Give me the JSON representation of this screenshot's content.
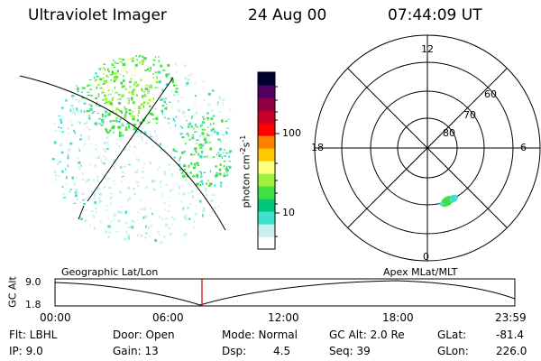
{
  "header": {
    "instrument": "Ultraviolet Imager",
    "date": "24 Aug 00",
    "time": "07:44:09 UT"
  },
  "colorbar": {
    "unit_label": "photon cm",
    "unit_exp1": "-2",
    "unit_s": "s",
    "unit_exp2": "-1",
    "tick_100": "100",
    "tick_10": "10",
    "colors": [
      "#ffffff",
      "#c8f0f0",
      "#40e0d0",
      "#00c878",
      "#40e040",
      "#a0f040",
      "#ffff80",
      "#ffc800",
      "#ff8000",
      "#ff0000",
      "#c80028",
      "#900040",
      "#500060",
      "#000030"
    ]
  },
  "polar": {
    "mlt_12": "12",
    "mlt_18": "18",
    "mlt_6": "6",
    "mlt_0": "0",
    "lat_60": "60",
    "lat_70": "70",
    "lat_80": "80"
  },
  "timeline": {
    "geo_label": "Geographic Lat/Lon",
    "apex_label": "Apex MLat/MLT",
    "axis_title": "GC Alt",
    "y_max": "9.0",
    "y_min": "1.8",
    "x_ticks": [
      "00:00",
      "06:00",
      "12:00",
      "18:00",
      "23:59"
    ]
  },
  "footer": {
    "filter": "Flt: LBHL",
    "ip": "IP:  9.0",
    "door": "Door: Open",
    "gain": "Gain: 13",
    "mode": "Mode: Normal",
    "dsp_label": "Dsp:",
    "dsp_value": "4.5",
    "gc_alt": "GC Alt: 2.0 Re",
    "seq": "Seq: 39",
    "glat_label": "GLat:",
    "glat_value": "-81.4",
    "glon_label": "GLon:",
    "glon_value": "226.0"
  }
}
